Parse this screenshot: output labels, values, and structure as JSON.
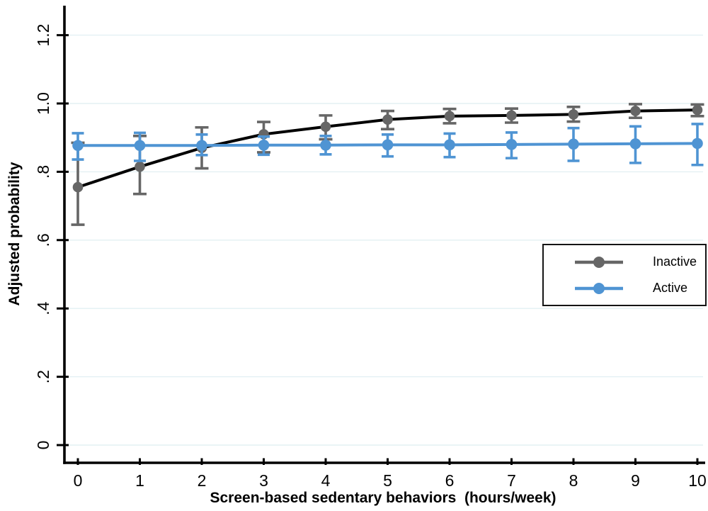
{
  "figure": {
    "background": "#ffffff",
    "axis_color": "#000000",
    "tick_label_color": "#000000"
  },
  "chart_data": {
    "type": "line",
    "title": "",
    "xlabel": "Screen-based sedentary behaviors  (hours/week)",
    "ylabel": "Adjusted probability",
    "xlim": [
      0,
      10
    ],
    "ylim": [
      0,
      1.2
    ],
    "grid": "horizontal",
    "gridline_color": "#e3f0f3",
    "x": [
      0,
      1,
      2,
      3,
      4,
      5,
      6,
      7,
      8,
      9,
      10
    ],
    "x_ticks": [
      "0",
      "1",
      "2",
      "3",
      "4",
      "5",
      "6",
      "7",
      "8",
      "9",
      "10"
    ],
    "y_ticks": [
      "0",
      ".2",
      ".4",
      ".6",
      ".8",
      "1.0",
      "1.2"
    ],
    "y_tick_values": [
      0,
      0.2,
      0.4,
      0.6,
      0.8,
      1.0,
      1.2
    ],
    "legend_position": "middle-right",
    "series": [
      {
        "name": "Inactive",
        "line_color": "#000000",
        "marker_color": "#666666",
        "marker": "circle",
        "values": [
          0.755,
          0.815,
          0.87,
          0.91,
          0.932,
          0.953,
          0.963,
          0.965,
          0.968,
          0.978,
          0.981
        ],
        "ci_low": [
          0.645,
          0.735,
          0.81,
          0.857,
          0.895,
          0.925,
          0.942,
          0.944,
          0.947,
          0.958,
          0.963
        ],
        "ci_high": [
          0.885,
          0.905,
          0.93,
          0.946,
          0.965,
          0.978,
          0.984,
          0.985,
          0.99,
          0.998,
          0.997
        ]
      },
      {
        "name": "Active",
        "line_color": "#4f94d3",
        "marker_color": "#4f94d3",
        "marker": "circle",
        "values": [
          0.877,
          0.877,
          0.877,
          0.878,
          0.878,
          0.879,
          0.879,
          0.88,
          0.881,
          0.882,
          0.883
        ],
        "ci_low": [
          0.836,
          0.832,
          0.849,
          0.85,
          0.851,
          0.845,
          0.843,
          0.84,
          0.832,
          0.826,
          0.82
        ],
        "ci_high": [
          0.913,
          0.914,
          0.909,
          0.903,
          0.905,
          0.909,
          0.912,
          0.915,
          0.928,
          0.933,
          0.94
        ]
      }
    ]
  }
}
